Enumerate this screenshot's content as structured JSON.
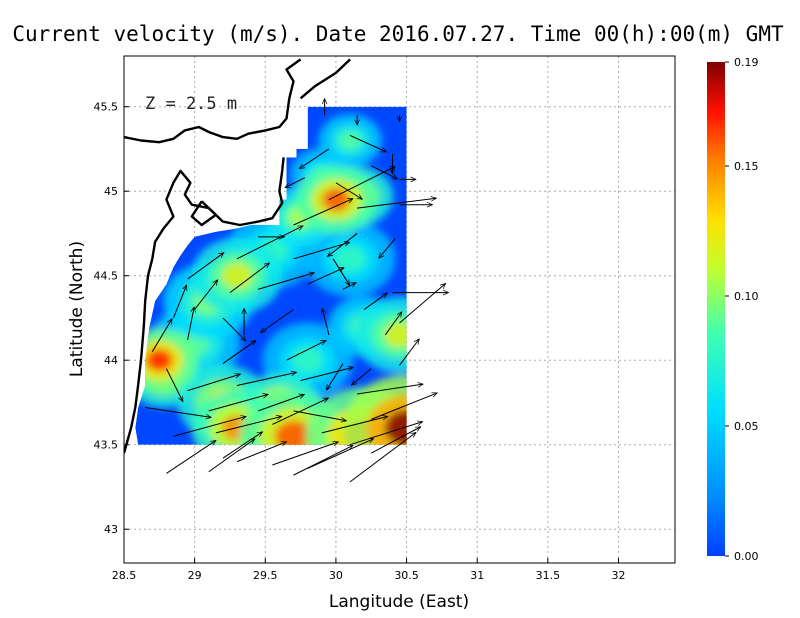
{
  "chart_data": {
    "type": "heatmap",
    "title": "Current velocity (m/s). Date 2016.07.27. Time 00(h):00(m) GMT",
    "xlabel": "Langitude (East)",
    "ylabel": "Latitude (North)",
    "annotation": "Z = 2.5 m",
    "xlim": [
      28.5,
      32.4
    ],
    "ylim": [
      42.8,
      45.8
    ],
    "x_ticks": [
      {
        "v": 28.5,
        "label": "28.5"
      },
      {
        "v": 29,
        "label": "29"
      },
      {
        "v": 29.5,
        "label": "29.5"
      },
      {
        "v": 30,
        "label": "30"
      },
      {
        "v": 30.5,
        "label": "30.5"
      },
      {
        "v": 31,
        "label": "31"
      },
      {
        "v": 31.5,
        "label": "31.5"
      },
      {
        "v": 32,
        "label": "32"
      }
    ],
    "y_ticks": [
      {
        "v": 43,
        "label": "43"
      },
      {
        "v": 43.5,
        "label": "43.5"
      },
      {
        "v": 44,
        "label": "44"
      },
      {
        "v": 44.5,
        "label": "44.5"
      },
      {
        "v": 45,
        "label": "45"
      },
      {
        "v": 45.5,
        "label": "45.5"
      }
    ],
    "grid": true,
    "colorbar": {
      "min": 0.0,
      "max": 0.19,
      "ticks": [
        {
          "v": 0.0,
          "label": "0.00"
        },
        {
          "v": 0.05,
          "label": "0.05"
        },
        {
          "v": 0.1,
          "label": "0.10"
        },
        {
          "v": 0.15,
          "label": "0.15"
        },
        {
          "v": 0.19,
          "label": "0.19"
        }
      ],
      "colormap": "jet"
    },
    "domain_boundary": [
      [
        30.5,
        45.5
      ],
      [
        29.8,
        45.5
      ],
      [
        29.8,
        45.25
      ],
      [
        29.72,
        45.25
      ],
      [
        29.72,
        45.2
      ],
      [
        29.65,
        45.2
      ],
      [
        29.65,
        44.95
      ],
      [
        29.6,
        44.95
      ],
      [
        29.6,
        44.8
      ],
      [
        29.4,
        44.8
      ],
      [
        29.3,
        44.78
      ],
      [
        29.15,
        44.76
      ],
      [
        29.0,
        44.73
      ],
      [
        28.95,
        44.68
      ],
      [
        28.9,
        44.62
      ],
      [
        28.85,
        44.55
      ],
      [
        28.8,
        44.45
      ],
      [
        28.72,
        44.35
      ],
      [
        28.68,
        44.2
      ],
      [
        28.65,
        44.0
      ],
      [
        28.65,
        43.85
      ],
      [
        28.6,
        43.72
      ],
      [
        28.58,
        43.6
      ],
      [
        28.6,
        43.5
      ],
      [
        30.5,
        43.5
      ]
    ],
    "velocity_hotspots": [
      {
        "lon": 30.0,
        "lat": 44.95,
        "speed": 0.16,
        "r": 0.18
      },
      {
        "lon": 30.15,
        "lat": 44.97,
        "speed": 0.13,
        "r": 0.16
      },
      {
        "lon": 29.75,
        "lat": 44.85,
        "speed": 0.11,
        "r": 0.16
      },
      {
        "lon": 28.75,
        "lat": 44.0,
        "speed": 0.17,
        "r": 0.17
      },
      {
        "lon": 28.78,
        "lat": 43.9,
        "speed": 0.13,
        "r": 0.16
      },
      {
        "lon": 30.5,
        "lat": 43.6,
        "speed": 0.19,
        "r": 0.28
      },
      {
        "lon": 30.2,
        "lat": 43.55,
        "speed": 0.17,
        "r": 0.26
      },
      {
        "lon": 29.7,
        "lat": 43.55,
        "speed": 0.16,
        "r": 0.24
      },
      {
        "lon": 29.3,
        "lat": 43.6,
        "speed": 0.15,
        "r": 0.2
      },
      {
        "lon": 29.2,
        "lat": 43.75,
        "speed": 0.13,
        "r": 0.2
      },
      {
        "lon": 29.6,
        "lat": 43.72,
        "speed": 0.14,
        "r": 0.18
      },
      {
        "lon": 30.45,
        "lat": 44.15,
        "speed": 0.12,
        "r": 0.2
      },
      {
        "lon": 30.2,
        "lat": 44.2,
        "speed": 0.09,
        "r": 0.16
      },
      {
        "lon": 29.3,
        "lat": 44.5,
        "speed": 0.12,
        "r": 0.2
      },
      {
        "lon": 29.1,
        "lat": 44.35,
        "speed": 0.1,
        "r": 0.2
      },
      {
        "lon": 29.55,
        "lat": 44.65,
        "speed": 0.08,
        "r": 0.2
      },
      {
        "lon": 30.1,
        "lat": 44.6,
        "speed": 0.08,
        "r": 0.2
      },
      {
        "lon": 29.0,
        "lat": 44.1,
        "speed": 0.09,
        "r": 0.2
      },
      {
        "lon": 30.1,
        "lat": 45.3,
        "speed": 0.09,
        "r": 0.14
      },
      {
        "lon": 29.9,
        "lat": 45.1,
        "speed": 0.08,
        "r": 0.14
      },
      {
        "lon": 29.8,
        "lat": 44.0,
        "speed": 0.08,
        "r": 0.2
      }
    ],
    "vectors": [
      {
        "lon": 29.92,
        "lat": 45.45,
        "u": 0.0,
        "v": 0.05
      },
      {
        "lon": 30.15,
        "lat": 45.45,
        "u": 0.0,
        "v": -0.03
      },
      {
        "lon": 30.45,
        "lat": 45.45,
        "u": 0.0,
        "v": -0.02
      },
      {
        "lon": 30.1,
        "lat": 45.33,
        "u": 0.11,
        "v": -0.05
      },
      {
        "lon": 29.95,
        "lat": 45.25,
        "u": -0.09,
        "v": -0.06
      },
      {
        "lon": 30.4,
        "lat": 45.22,
        "u": 0.0,
        "v": -0.06
      },
      {
        "lon": 30.25,
        "lat": 45.15,
        "u": 0.08,
        "v": -0.04
      },
      {
        "lon": 29.78,
        "lat": 45.08,
        "u": -0.06,
        "v": -0.03
      },
      {
        "lon": 30.0,
        "lat": 45.05,
        "u": 0.08,
        "v": -0.05
      },
      {
        "lon": 30.45,
        "lat": 45.07,
        "u": 0.05,
        "v": 0.0
      },
      {
        "lon": 29.95,
        "lat": 44.95,
        "u": 0.2,
        "v": 0.1
      },
      {
        "lon": 30.15,
        "lat": 44.9,
        "u": 0.24,
        "v": 0.03
      },
      {
        "lon": 30.45,
        "lat": 44.92,
        "u": 0.1,
        "v": 0.0
      },
      {
        "lon": 29.7,
        "lat": 44.8,
        "u": 0.18,
        "v": 0.08
      },
      {
        "lon": 29.45,
        "lat": 44.73,
        "u": 0.08,
        "v": 0.0
      },
      {
        "lon": 30.15,
        "lat": 44.75,
        "u": -0.09,
        "v": -0.07
      },
      {
        "lon": 30.42,
        "lat": 44.72,
        "u": -0.05,
        "v": -0.06
      },
      {
        "lon": 29.3,
        "lat": 44.6,
        "u": 0.2,
        "v": 0.1
      },
      {
        "lon": 29.7,
        "lat": 44.6,
        "u": 0.17,
        "v": 0.05
      },
      {
        "lon": 29.98,
        "lat": 44.6,
        "u": 0.05,
        "v": -0.08
      },
      {
        "lon": 28.95,
        "lat": 44.48,
        "u": 0.11,
        "v": 0.08
      },
      {
        "lon": 29.25,
        "lat": 44.4,
        "u": 0.12,
        "v": 0.09
      },
      {
        "lon": 29.45,
        "lat": 44.42,
        "u": 0.17,
        "v": 0.05
      },
      {
        "lon": 29.8,
        "lat": 44.45,
        "u": 0.11,
        "v": 0.05
      },
      {
        "lon": 30.05,
        "lat": 44.42,
        "u": 0.04,
        "v": 0.02
      },
      {
        "lon": 30.4,
        "lat": 44.4,
        "u": 0.17,
        "v": 0.0
      },
      {
        "lon": 28.85,
        "lat": 44.25,
        "u": 0.04,
        "v": 0.1
      },
      {
        "lon": 29.0,
        "lat": 44.3,
        "u": 0.07,
        "v": 0.09
      },
      {
        "lon": 29.2,
        "lat": 44.25,
        "u": 0.07,
        "v": -0.07
      },
      {
        "lon": 29.7,
        "lat": 44.3,
        "u": -0.1,
        "v": -0.07
      },
      {
        "lon": 30.2,
        "lat": 44.3,
        "u": 0.07,
        "v": 0.05
      },
      {
        "lon": 30.45,
        "lat": 44.22,
        "u": 0.14,
        "v": 0.12
      },
      {
        "lon": 28.7,
        "lat": 44.05,
        "u": 0.06,
        "v": 0.1
      },
      {
        "lon": 28.95,
        "lat": 44.12,
        "u": 0.02,
        "v": 0.1
      },
      {
        "lon": 29.35,
        "lat": 44.15,
        "u": 0.0,
        "v": 0.08
      },
      {
        "lon": 29.95,
        "lat": 44.15,
        "u": -0.02,
        "v": 0.08
      },
      {
        "lon": 30.35,
        "lat": 44.15,
        "u": 0.05,
        "v": 0.07
      },
      {
        "lon": 28.8,
        "lat": 43.95,
        "u": 0.05,
        "v": -0.1
      },
      {
        "lon": 29.2,
        "lat": 43.98,
        "u": 0.1,
        "v": 0.07
      },
      {
        "lon": 29.65,
        "lat": 44.0,
        "u": 0.12,
        "v": 0.06
      },
      {
        "lon": 30.05,
        "lat": 43.98,
        "u": -0.05,
        "v": -0.08
      },
      {
        "lon": 30.25,
        "lat": 43.95,
        "u": -0.06,
        "v": -0.05
      },
      {
        "lon": 30.45,
        "lat": 43.97,
        "u": 0.06,
        "v": 0.08
      },
      {
        "lon": 28.95,
        "lat": 43.82,
        "u": 0.16,
        "v": 0.05
      },
      {
        "lon": 29.3,
        "lat": 43.85,
        "u": 0.18,
        "v": 0.04
      },
      {
        "lon": 29.75,
        "lat": 43.88,
        "u": 0.16,
        "v": 0.04
      },
      {
        "lon": 30.15,
        "lat": 43.8,
        "u": 0.2,
        "v": 0.03
      },
      {
        "lon": 28.65,
        "lat": 43.72,
        "u": 0.2,
        "v": -0.03
      },
      {
        "lon": 29.1,
        "lat": 43.7,
        "u": 0.18,
        "v": 0.05
      },
      {
        "lon": 29.45,
        "lat": 43.7,
        "u": 0.14,
        "v": 0.05
      },
      {
        "lon": 29.7,
        "lat": 43.7,
        "u": 0.16,
        "v": -0.03
      },
      {
        "lon": 30.25,
        "lat": 43.65,
        "u": 0.2,
        "v": 0.08
      },
      {
        "lon": 28.85,
        "lat": 43.55,
        "u": 0.22,
        "v": 0.06
      },
      {
        "lon": 29.15,
        "lat": 43.57,
        "u": 0.2,
        "v": 0.05
      },
      {
        "lon": 29.55,
        "lat": 43.62,
        "u": 0.17,
        "v": 0.08
      },
      {
        "lon": 29.9,
        "lat": 43.57,
        "u": 0.2,
        "v": 0.05
      },
      {
        "lon": 30.1,
        "lat": 43.5,
        "u": 0.22,
        "v": 0.07
      },
      {
        "lon": 28.8,
        "lat": 43.33,
        "u": 0.15,
        "v": 0.1
      },
      {
        "lon": 29.1,
        "lat": 43.34,
        "u": 0.14,
        "v": 0.1
      },
      {
        "lon": 29.3,
        "lat": 43.4,
        "u": 0.15,
        "v": 0.06
      },
      {
        "lon": 29.55,
        "lat": 43.38,
        "u": 0.2,
        "v": 0.07
      },
      {
        "lon": 29.8,
        "lat": 43.36,
        "u": 0.2,
        "v": 0.09
      },
      {
        "lon": 30.1,
        "lat": 43.28,
        "u": 0.2,
        "v": 0.15
      },
      {
        "lon": 29.7,
        "lat": 43.32,
        "u": 0.18,
        "v": 0.09
      },
      {
        "lon": 30.25,
        "lat": 43.45,
        "u": 0.15,
        "v": 0.08
      },
      {
        "lon": 29.2,
        "lat": 43.42,
        "u": 0.12,
        "v": 0.08
      }
    ],
    "coastline": [
      [
        [
          28.5,
          45.32
        ],
        [
          28.62,
          45.3
        ],
        [
          28.75,
          45.29
        ],
        [
          28.85,
          45.31
        ],
        [
          28.93,
          45.36
        ],
        [
          29.03,
          45.38
        ],
        [
          29.1,
          45.35
        ],
        [
          29.2,
          45.32
        ],
        [
          29.3,
          45.31
        ],
        [
          29.38,
          45.34
        ],
        [
          29.5,
          45.36
        ],
        [
          29.6,
          45.38
        ],
        [
          29.65,
          45.43
        ],
        [
          29.67,
          45.55
        ],
        [
          29.7,
          45.65
        ],
        [
          29.65,
          45.72
        ],
        [
          29.75,
          45.78
        ]
      ],
      [
        [
          29.75,
          45.55
        ],
        [
          29.85,
          45.62
        ],
        [
          30.0,
          45.7
        ],
        [
          30.1,
          45.78
        ]
      ],
      [
        [
          29.63,
          45.2
        ],
        [
          29.62,
          45.12
        ],
        [
          29.6,
          45.0
        ],
        [
          29.62,
          44.93
        ],
        [
          29.55,
          44.84
        ],
        [
          29.45,
          44.82
        ],
        [
          29.32,
          44.8
        ],
        [
          29.2,
          44.82
        ],
        [
          29.1,
          44.9
        ],
        [
          28.98,
          44.92
        ],
        [
          28.93,
          44.98
        ],
        [
          28.97,
          45.05
        ],
        [
          28.9,
          45.12
        ],
        [
          28.85,
          45.05
        ],
        [
          28.8,
          44.95
        ],
        [
          28.85,
          44.85
        ],
        [
          28.78,
          44.78
        ],
        [
          28.72,
          44.7
        ],
        [
          28.7,
          44.6
        ],
        [
          28.67,
          44.5
        ],
        [
          28.65,
          44.35
        ],
        [
          28.64,
          44.2
        ],
        [
          28.62,
          44.0
        ],
        [
          28.6,
          43.85
        ],
        [
          28.58,
          43.72
        ],
        [
          28.55,
          43.6
        ],
        [
          28.5,
          43.45
        ]
      ],
      [
        [
          29.05,
          44.94
        ],
        [
          29.15,
          44.86
        ],
        [
          29.05,
          44.8
        ],
        [
          28.98,
          44.85
        ],
        [
          29.05,
          44.94
        ]
      ]
    ]
  }
}
